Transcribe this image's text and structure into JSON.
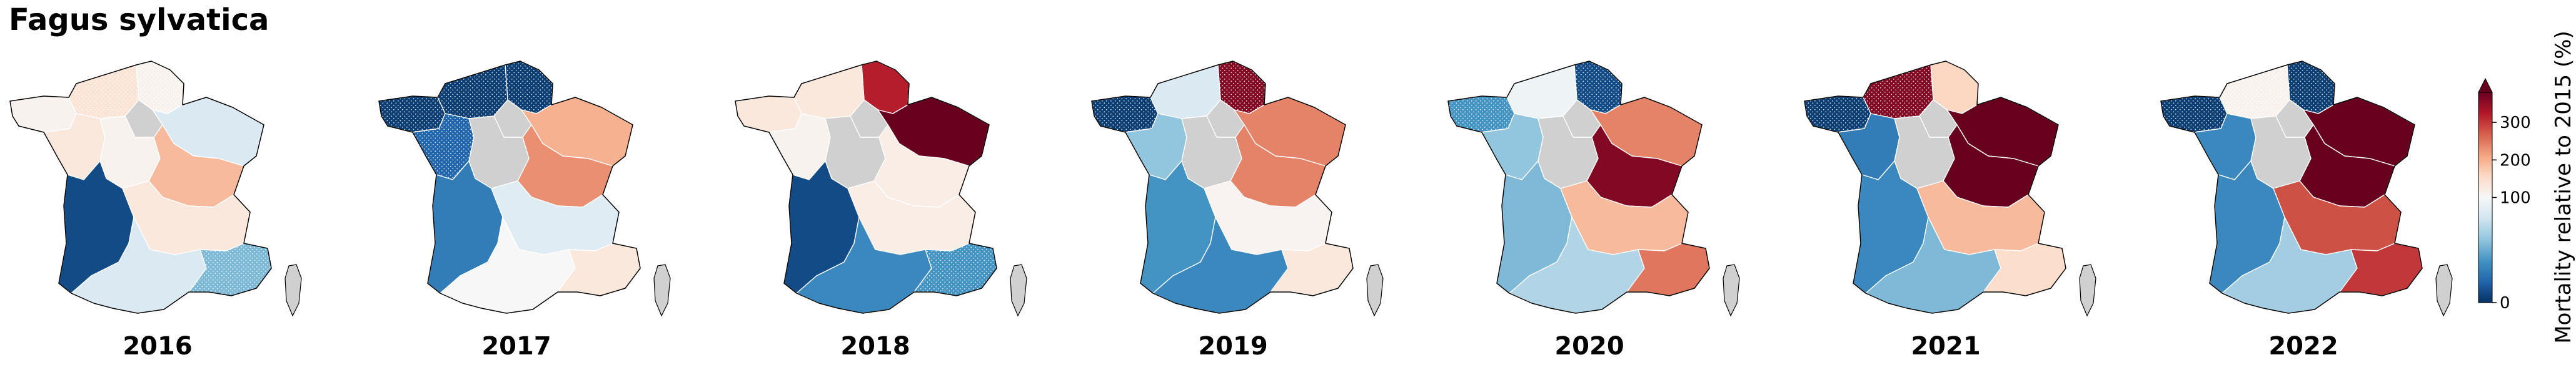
{
  "title": "Fagus sylvatica",
  "chart_data": {
    "type": "choropleth",
    "maps": [
      {
        "year": "2016",
        "regions": {
          "bretagne": 110,
          "normandie": 140,
          "hdf": 110,
          "grandest": 85,
          "idf": null,
          "cvl": 110,
          "pdl": 130,
          "bfc": 190,
          "nouvelle_aquitaine": 10,
          "auvergne_ra": 130,
          "occitanie": 85,
          "paca": 55
        },
        "hatched": [
          "normandie",
          "hdf",
          "paca"
        ]
      },
      {
        "year": "2017",
        "regions": {
          "bretagne": 5,
          "normandie": 5,
          "hdf": 5,
          "grandest": 200,
          "idf": null,
          "cvl": null,
          "pdl": 20,
          "bfc": 230,
          "nouvelle_aquitaine": 30,
          "auvergne_ra": 88,
          "occitanie": 100,
          "paca": 130
        },
        "hatched": [
          "bretagne",
          "normandie",
          "hdf",
          "pdl"
        ]
      },
      {
        "year": "2018",
        "regions": {
          "bretagne": 130,
          "normandie": 130,
          "hdf": 320,
          "grandest": 380,
          "idf": null,
          "cvl": null,
          "pdl": 110,
          "bfc": 120,
          "nouvelle_aquitaine": 10,
          "auvergne_ra": 120,
          "occitanie": 35,
          "paca": 40
        },
        "hatched": [
          "paca"
        ]
      },
      {
        "year": "2019",
        "regions": {
          "bretagne": 5,
          "normandie": 85,
          "hdf": 360,
          "grandest": 240,
          "idf": null,
          "cvl": null,
          "pdl": 60,
          "bfc": 240,
          "nouvelle_aquitaine": 40,
          "auvergne_ra": 108,
          "occitanie": 35,
          "paca": 130
        },
        "hatched": [
          "bretagne",
          "hdf"
        ]
      },
      {
        "year": "2020",
        "regions": {
          "bretagne": 40,
          "normandie": 95,
          "hdf": 10,
          "grandest": 240,
          "idf": null,
          "cvl": null,
          "pdl": 60,
          "bfc": 360,
          "nouvelle_aquitaine": 55,
          "auvergne_ra": 190,
          "occitanie": 70,
          "paca": 250
        },
        "hatched": [
          "bretagne",
          "hdf"
        ]
      },
      {
        "year": "2021",
        "regions": {
          "bretagne": 5,
          "normandie": 360,
          "hdf": 160,
          "grandest": 380,
          "idf": null,
          "cvl": null,
          "pdl": 30,
          "bfc": 380,
          "nouvelle_aquitaine": 35,
          "auvergne_ra": 190,
          "occitanie": 55,
          "paca": 150
        },
        "hatched": [
          "bretagne",
          "normandie"
        ]
      },
      {
        "year": "2022",
        "regions": {
          "bretagne": 5,
          "normandie": 110,
          "hdf": 5,
          "grandest": 380,
          "idf": null,
          "cvl": null,
          "pdl": 35,
          "bfc": 380,
          "nouvelle_aquitaine": 35,
          "auvergne_ra": 280,
          "occitanie": 65,
          "paca": 300
        },
        "hatched": [
          "bretagne",
          "hdf",
          "normandie"
        ]
      }
    ],
    "colorbar": {
      "label": "Mortality relative to 2015 (%)",
      "ticks": [
        "0",
        "100",
        "200",
        "300"
      ],
      "range": [
        0,
        380
      ],
      "center": 100,
      "extend": "max",
      "colormap": "RdBu_r"
    },
    "colors": {
      "no_data": "#d0d0d0",
      "border": "#000000"
    }
  }
}
